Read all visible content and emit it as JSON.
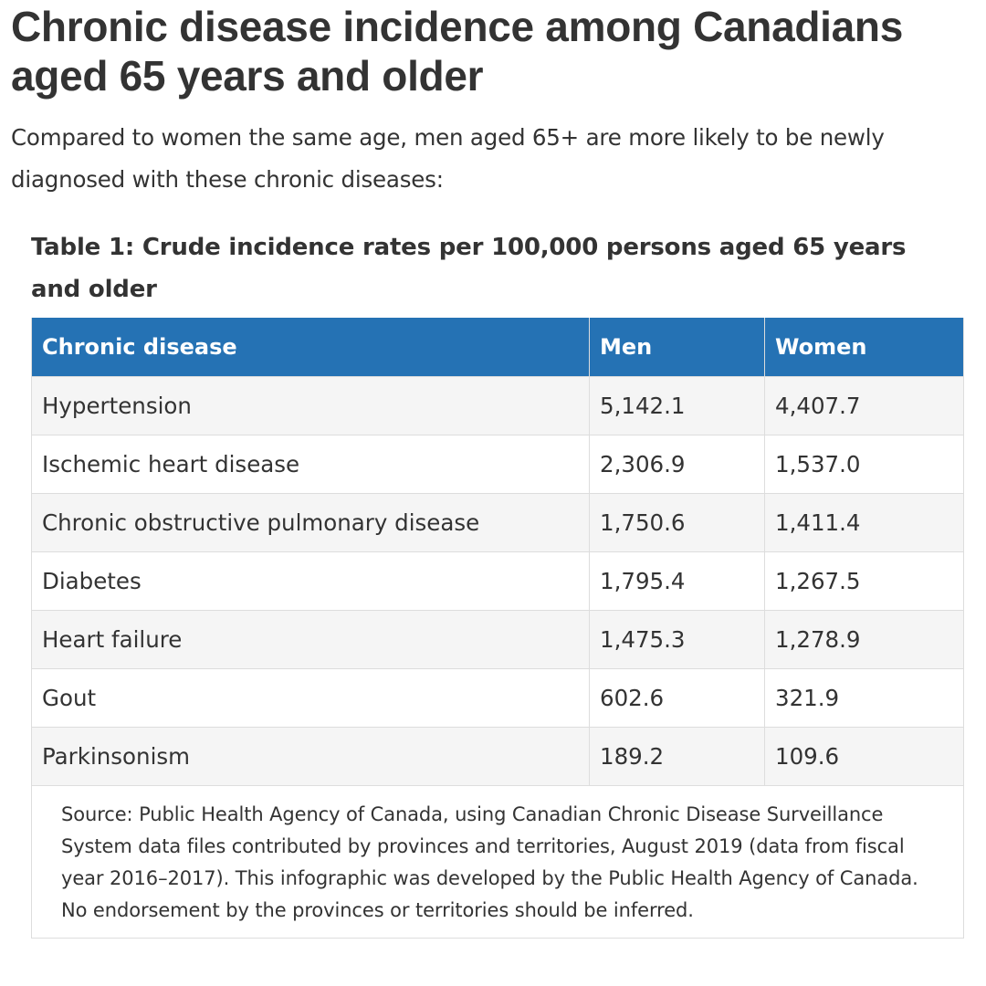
{
  "heading": {
    "title": "Chronic disease incidence among Canadians aged 65 years and older",
    "intro": "Compared to women the same age, men aged 65+ are more likely to be newly diagnosed with these chronic diseases:"
  },
  "table": {
    "caption": "Table 1: Crude incidence rates per 100,000 persons aged 65 years and older",
    "columns": [
      "Chronic disease",
      "Men",
      "Women"
    ],
    "rows": [
      [
        "Hypertension",
        "5,142.1",
        "4,407.7"
      ],
      [
        "Ischemic heart disease",
        "2,306.9",
        "1,537.0"
      ],
      [
        "Chronic obstructive pulmonary disease",
        "1,750.6",
        "1,411.4"
      ],
      [
        "Diabetes",
        "1,795.4",
        "1,267.5"
      ],
      [
        "Heart failure",
        "1,475.3",
        "1,278.9"
      ],
      [
        "Gout",
        "602.6",
        "321.9"
      ],
      [
        "Parkinsonism",
        "189.2",
        "109.6"
      ]
    ],
    "source": "Source: Public Health Agency of Canada, using Canadian Chronic Disease Surveillance System data files contributed by provinces and territories, August 2019 (data from fiscal year 2016–2017). This infographic was developed by the Public Health Agency of Canada. No endorsement by the provinces or territories should be inferred."
  },
  "colors": {
    "header_background": "#2572b4",
    "header_text": "#ffffff",
    "striped_row": "#f5f5f5",
    "body_text": "#333333",
    "border": "#dddddd"
  }
}
